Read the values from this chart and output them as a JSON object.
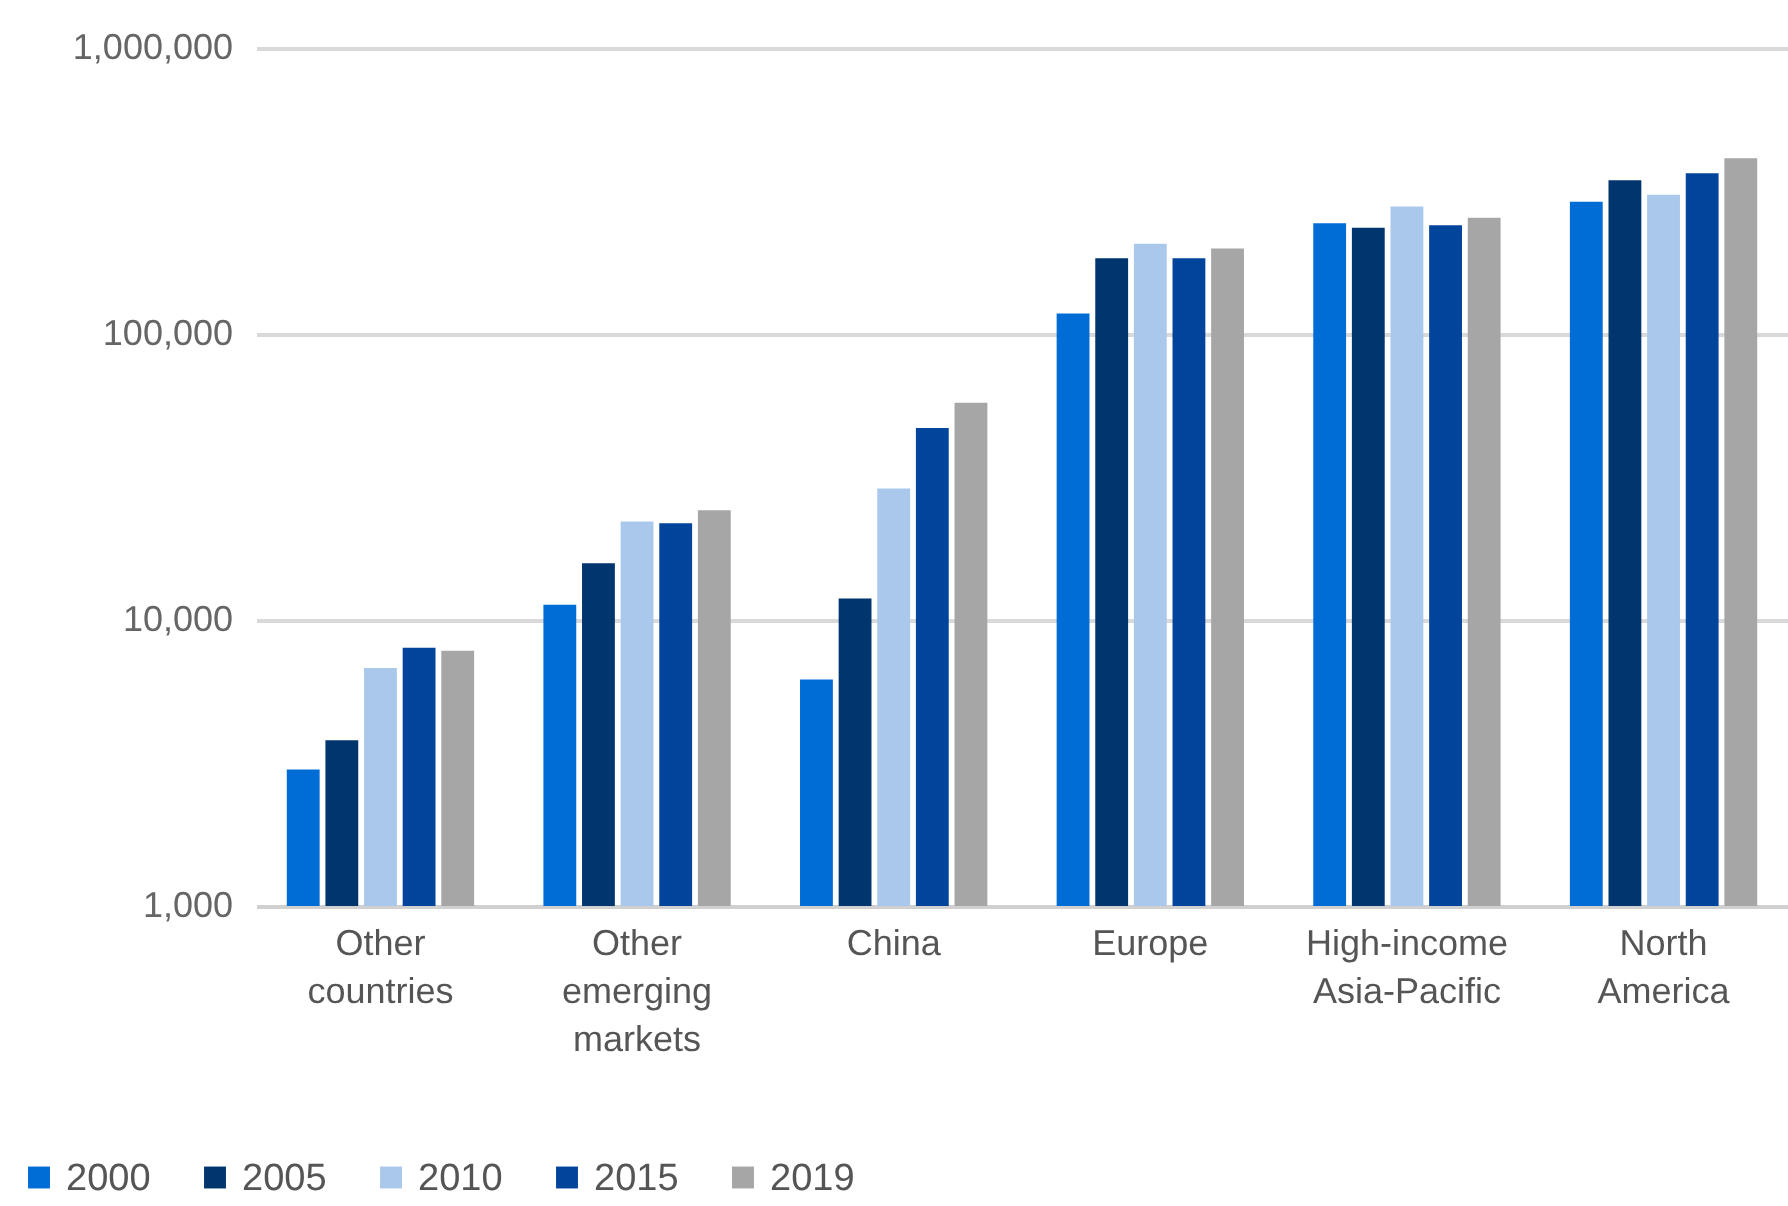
{
  "chart_data": {
    "type": "bar",
    "categories": [
      "Other countries",
      "Other emerging markets",
      "China",
      "Europe",
      "High-income Asia-Pacific",
      "North America"
    ],
    "series": [
      {
        "name": "2000",
        "color": "#006cd6",
        "values": [
          3000,
          11300,
          6200,
          118000,
          244000,
          290000
        ]
      },
      {
        "name": "2005",
        "color": "#00356e",
        "values": [
          3800,
          15800,
          11900,
          184000,
          235000,
          345000
        ]
      },
      {
        "name": "2010",
        "color": "#a9c8ec",
        "values": [
          6800,
          22100,
          28800,
          207000,
          279000,
          307000
        ]
      },
      {
        "name": "2015",
        "color": "#00449c",
        "values": [
          8000,
          21800,
          46900,
          184000,
          240000,
          365000
        ]
      },
      {
        "name": "2019",
        "color": "#a6a6a6",
        "values": [
          7800,
          24200,
          57500,
          199000,
          255000,
          412000
        ]
      }
    ],
    "log": "y",
    "ylim": [
      1000,
      1000000
    ],
    "yticks": [
      {
        "value": 1000,
        "label": "1,000"
      },
      {
        "value": 10000,
        "label": "10,000"
      },
      {
        "value": 100000,
        "label": "100,000"
      },
      {
        "value": 1000000,
        "label": "1,000,000"
      }
    ],
    "grid": "y",
    "legend": "bottom left"
  }
}
